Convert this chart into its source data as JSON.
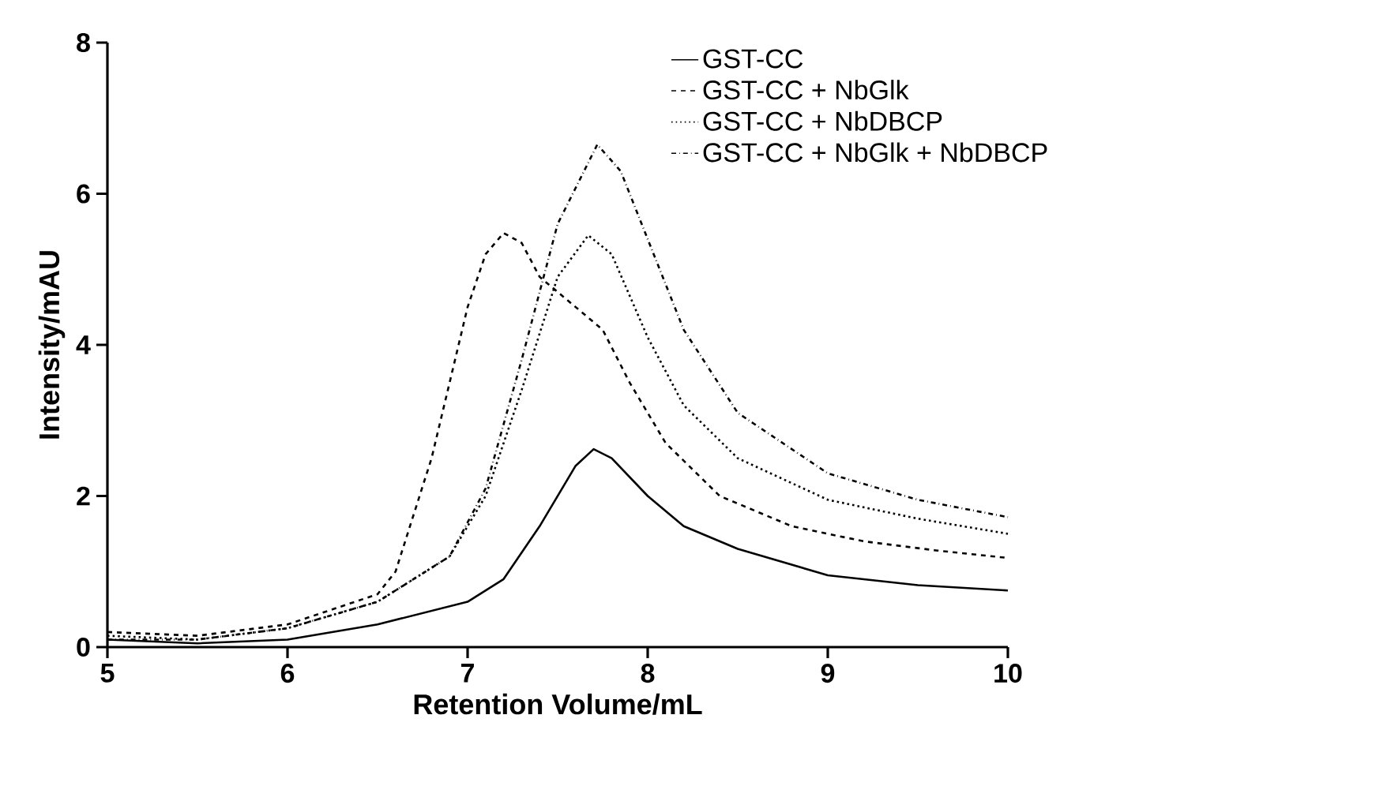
{
  "chart_data": {
    "type": "line",
    "xlabel": "Retention Volume/mL",
    "ylabel": "Intensity/mAU",
    "xlim": [
      5,
      10
    ],
    "ylim": [
      0,
      8
    ],
    "xticks": [
      5,
      6,
      7,
      8,
      9,
      10
    ],
    "yticks": [
      0,
      2,
      4,
      6,
      8
    ],
    "grid": false,
    "legend": "top right",
    "marker": "none",
    "series": [
      {
        "name": "GST-CC",
        "color": "#000000",
        "line_style": "solid",
        "x": [
          5,
          5.5,
          6,
          6.5,
          7,
          7.2,
          7.4,
          7.6,
          7.7,
          7.8,
          8.0,
          8.2,
          8.5,
          9,
          9.5,
          10
        ],
        "values": [
          0.1,
          0.05,
          0.1,
          0.3,
          0.6,
          0.9,
          1.6,
          2.4,
          2.62,
          2.5,
          2.0,
          1.6,
          1.3,
          0.95,
          0.82,
          0.75
        ]
      },
      {
        "name": "GST-CC + NbGlk",
        "color": "#000000",
        "line_style": "dashed",
        "x": [
          5,
          5.5,
          6,
          6.5,
          6.6,
          6.8,
          7.0,
          7.1,
          7.2,
          7.3,
          7.4,
          7.6,
          7.75,
          7.9,
          8.1,
          8.4,
          8.8,
          9.2,
          9.6,
          10
        ],
        "values": [
          0.2,
          0.15,
          0.3,
          0.7,
          1.0,
          2.5,
          4.5,
          5.2,
          5.48,
          5.35,
          4.9,
          4.5,
          4.2,
          3.5,
          2.7,
          2.0,
          1.6,
          1.4,
          1.28,
          1.18
        ]
      },
      {
        "name": "GST-CC + NbDBCP",
        "color": "#000000",
        "line_style": "dotted",
        "x": [
          5,
          5.5,
          6,
          6.5,
          6.9,
          7.1,
          7.3,
          7.5,
          7.67,
          7.8,
          8.0,
          8.2,
          8.5,
          9.0,
          9.5,
          10
        ],
        "values": [
          0.15,
          0.1,
          0.25,
          0.6,
          1.2,
          2.0,
          3.4,
          4.9,
          5.45,
          5.2,
          4.1,
          3.2,
          2.5,
          1.95,
          1.7,
          1.5
        ]
      },
      {
        "name": "GST-CC + NbGlk + NbDBCP",
        "color": "#000000",
        "line_style": "dashdot",
        "x": [
          5,
          5.5,
          6,
          6.5,
          6.9,
          7.1,
          7.3,
          7.5,
          7.72,
          7.85,
          8.0,
          8.2,
          8.5,
          9.0,
          9.5,
          10
        ],
        "values": [
          0.1,
          0.1,
          0.25,
          0.6,
          1.2,
          2.1,
          3.8,
          5.6,
          6.65,
          6.3,
          5.4,
          4.2,
          3.1,
          2.3,
          1.95,
          1.72
        ]
      }
    ]
  }
}
